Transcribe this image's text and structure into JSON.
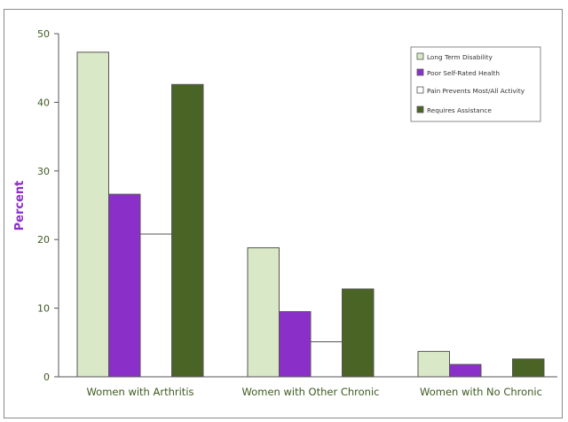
{
  "chart_data": {
    "type": "bar",
    "title": "",
    "xlabel": "",
    "ylabel": "Percent",
    "ylim": [
      0,
      50
    ],
    "yticks": [
      0,
      10,
      20,
      30,
      40,
      50
    ],
    "grid": false,
    "legend_position": "top-right",
    "categories": [
      "Women with Arthritis",
      "Women with Other Chronic",
      "Women with No Chronic"
    ],
    "series": [
      {
        "name": "Long Term Disability",
        "color": "#d9e8c6",
        "values": [
          47.3,
          18.8,
          3.7
        ]
      },
      {
        "name": "Poor Self-Rated Health",
        "color": "#8b2fc9",
        "values": [
          26.6,
          9.5,
          1.8
        ]
      },
      {
        "name": "Pain Prevents Most/All Activity",
        "color": "#ffffff",
        "values": [
          20.8,
          5.1,
          0
        ]
      },
      {
        "name": "Requires Assistance",
        "color": "#4a6425",
        "values": [
          42.6,
          12.8,
          2.6
        ]
      }
    ]
  },
  "colors": {
    "tick_label": "#3d5a1f",
    "ylabel": "#8b2fc9",
    "axis": "#555555",
    "bar_outline": "#555555"
  }
}
